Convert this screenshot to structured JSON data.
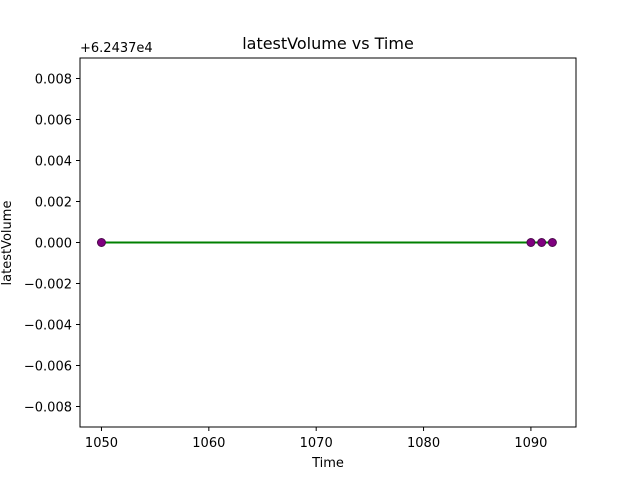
{
  "chart_data": {
    "type": "line",
    "title": "latestVolume vs Time",
    "xlabel": "Time",
    "ylabel": "latestVolume",
    "offset_label": "+6.2437e4",
    "xlim": [
      1048,
      1094.2
    ],
    "ylim": [
      -0.009,
      0.009
    ],
    "x_ticks": [
      1050,
      1060,
      1070,
      1080,
      1090
    ],
    "x_tick_labels": [
      "1050",
      "1060",
      "1070",
      "1080",
      "1090"
    ],
    "y_ticks": [
      -0.008,
      -0.006,
      -0.004,
      -0.002,
      0.0,
      0.002,
      0.004,
      0.006,
      0.008
    ],
    "y_tick_labels": [
      "−0.008",
      "−0.006",
      "−0.004",
      "−0.002",
      "0.000",
      "0.002",
      "0.004",
      "0.006",
      "0.008"
    ],
    "grid": false,
    "legend": "none",
    "series": [
      {
        "x": [
          1050,
          1090,
          1091,
          1092
        ],
        "y": [
          0,
          0,
          0,
          0
        ],
        "line_color": "#008000",
        "marker_color": "#800080",
        "marker_edge_color": "#4b0a4b"
      }
    ]
  }
}
